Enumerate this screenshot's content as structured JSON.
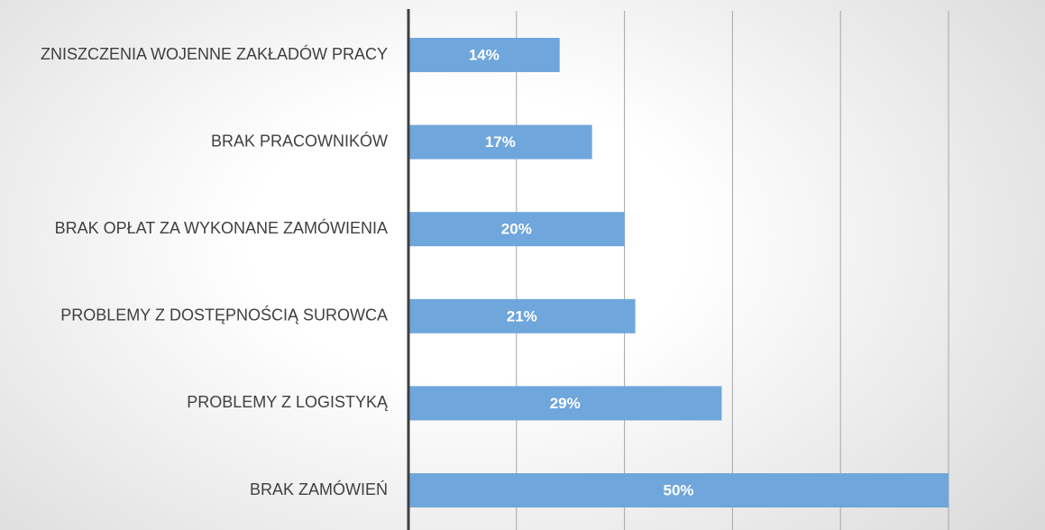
{
  "chart_data": {
    "type": "barh",
    "categories": [
      "ZNISZCZENIA WOJENNE ZAKŁADÓW PRACY",
      "BRAK PRACOWNIKÓW",
      "BRAK OPŁAT ZA WYKONANE ZAMÓWIENIA",
      "PROBLEMY Z DOSTĘPNOŚCIĄ SUROWCA",
      "PROBLEMY Z LOGISTYKĄ",
      "BRAK ZAMÓWIEŃ"
    ],
    "values": [
      14,
      17,
      20,
      21,
      29,
      50
    ],
    "value_labels": [
      "14%",
      "17%",
      "20%",
      "21%",
      "29%",
      "50%"
    ],
    "color": "#6fa6dc",
    "xlim": [
      0,
      50
    ],
    "xticks": [
      0,
      10,
      20,
      30,
      40,
      50
    ],
    "grid": true
  }
}
